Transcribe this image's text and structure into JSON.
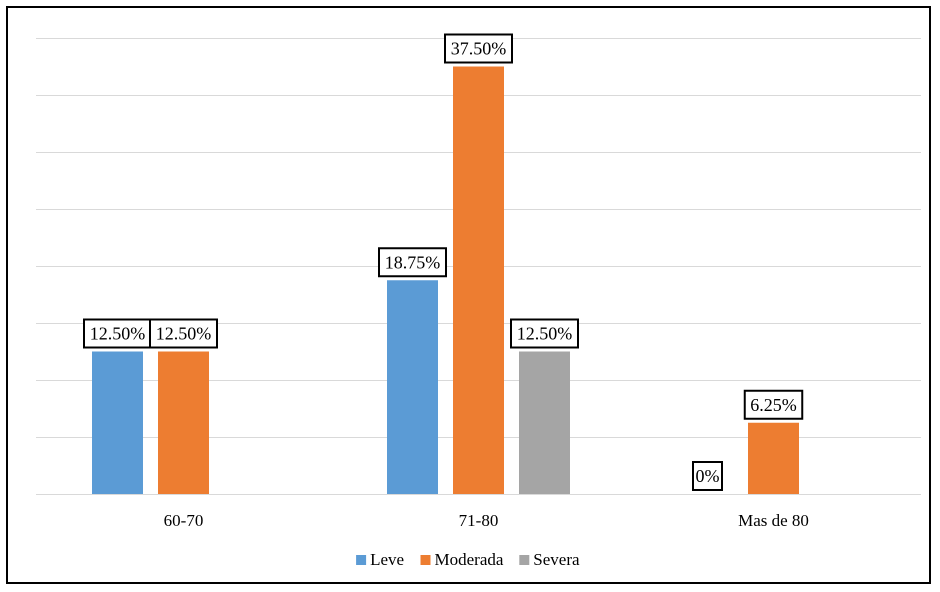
{
  "chart_data": {
    "type": "bar",
    "title": "",
    "xlabel": "",
    "ylabel": "",
    "categories": [
      "60-70",
      "71-80",
      "Mas de 80"
    ],
    "ylim": [
      0,
      40
    ],
    "grid": true,
    "legend_position": "bottom",
    "series": [
      {
        "name": "Leve",
        "color": "#5B9BD5",
        "values": [
          12.5,
          18.75,
          0
        ],
        "labels": [
          "12.50%",
          "18.75%",
          "0%"
        ]
      },
      {
        "name": "Moderada",
        "color": "#ED7D31",
        "values": [
          12.5,
          37.5,
          6.25
        ],
        "labels": [
          "12.50%",
          "37.50%",
          "6.25%"
        ]
      },
      {
        "name": "Severa",
        "color": "#A5A5A5",
        "values": [
          null,
          12.5,
          null
        ],
        "labels": [
          null,
          "12.50%",
          null
        ]
      }
    ]
  }
}
